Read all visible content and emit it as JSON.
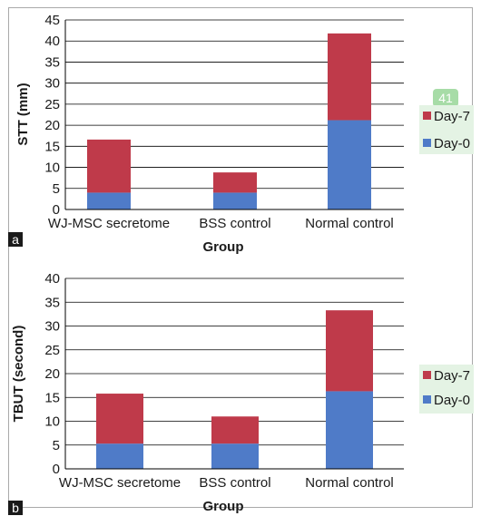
{
  "colors": {
    "day0": "#4f7bc8",
    "day7": "#bf3a4a",
    "legend_bg": "#e4f3e4",
    "annotation_bg": "#a7dca7"
  },
  "chart_data": [
    {
      "type": "bar",
      "stacked": true,
      "panel_label": "a",
      "ylabel": "STT (mm)",
      "xlabel": "Group",
      "categories": [
        "WJ-MSC secretome",
        "BSS control",
        "Normal control"
      ],
      "series": [
        {
          "name": "Day-0",
          "color": "#4f7bc8",
          "values": [
            4,
            4,
            21.2
          ]
        },
        {
          "name": "Day-7",
          "color": "#bf3a4a",
          "values": [
            12.6,
            4.8,
            20.6
          ]
        }
      ],
      "ylim": [
        0,
        45
      ],
      "yticks": [
        "0",
        "5",
        "10",
        "15",
        "20",
        "25",
        "30",
        "35",
        "40",
        "45"
      ],
      "grid": true,
      "legend": "right",
      "annotation": "41"
    },
    {
      "type": "bar",
      "stacked": true,
      "panel_label": "b",
      "ylabel": "TBUT (second)",
      "xlabel": "Group",
      "categories": [
        "WJ-MSC secretome",
        "BSS control",
        "Normal control"
      ],
      "series": [
        {
          "name": "Day-0",
          "color": "#4f7bc8",
          "values": [
            5.3,
            5.3,
            16.3
          ]
        },
        {
          "name": "Day-7",
          "color": "#bf3a4a",
          "values": [
            10.5,
            5.7,
            17
          ]
        }
      ],
      "ylim": [
        0,
        40
      ],
      "yticks": [
        "0",
        "5",
        "10",
        "15",
        "20",
        "25",
        "30",
        "35",
        "40"
      ],
      "grid": true,
      "legend": "right"
    }
  ]
}
